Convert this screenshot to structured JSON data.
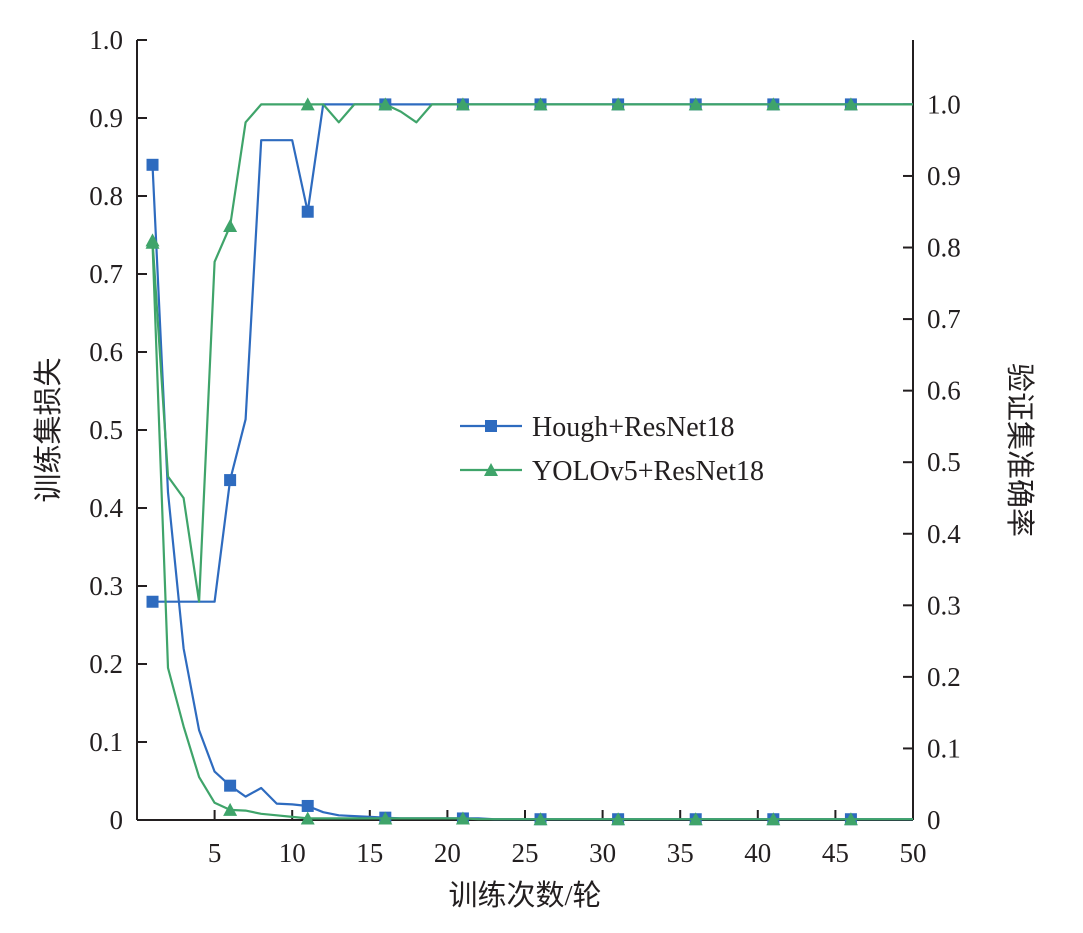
{
  "chart_data": {
    "type": "line",
    "xlabel": "训练次数/轮",
    "ylabel_left": "训练集损失",
    "ylabel_right": "验证集准确率",
    "xlim": [
      0,
      50
    ],
    "ylim_left": [
      0,
      1.0
    ],
    "ylim_right": [
      0,
      1.09
    ],
    "x_ticks": [
      5,
      10,
      15,
      20,
      25,
      30,
      35,
      40,
      45,
      50
    ],
    "x_tick_labels": [
      "5",
      "10",
      "15",
      "20",
      "25",
      "30",
      "35",
      "40",
      "45",
      "50"
    ],
    "y_left_ticks": [
      0,
      0.1,
      0.2,
      0.3,
      0.4,
      0.5,
      0.6,
      0.7,
      0.8,
      0.9,
      1.0
    ],
    "y_left_tick_labels": [
      "0",
      "0.1",
      "0.2",
      "0.3",
      "0.4",
      "0.5",
      "0.6",
      "0.7",
      "0.8",
      "0.9",
      "1.0"
    ],
    "y_right_ticks": [
      0,
      0.1,
      0.2,
      0.3,
      0.4,
      0.5,
      0.6,
      0.7,
      0.8,
      0.9,
      1.0
    ],
    "y_right_tick_labels": [
      "0",
      "0.1",
      "0.2",
      "0.3",
      "0.4",
      "0.5",
      "0.6",
      "0.7",
      "0.8",
      "0.9",
      "1.0"
    ],
    "grid": false,
    "legend_position": "center-right",
    "series": [
      {
        "name": "Hough+ResNet18",
        "color": "#2e6bbf",
        "marker": "square",
        "loss": {
          "x": [
            1,
            2,
            3,
            4,
            5,
            6,
            7,
            8,
            9,
            10,
            11,
            12,
            13,
            14,
            15,
            16,
            17,
            18,
            19,
            20,
            21,
            22,
            23,
            24,
            25,
            26,
            31,
            36,
            41,
            46,
            50
          ],
          "y": [
            0.84,
            0.42,
            0.22,
            0.115,
            0.062,
            0.044,
            0.03,
            0.041,
            0.021,
            0.02,
            0.018,
            0.01,
            0.006,
            0.005,
            0.004,
            0.003,
            0.002,
            0.002,
            0.002,
            0.002,
            0.002,
            0.002,
            0.001,
            0.001,
            0.001,
            0.001,
            0.001,
            0.001,
            0.001,
            0.001,
            0.001
          ]
        },
        "accuracy": {
          "x": [
            1,
            2,
            3,
            4,
            5,
            6,
            7,
            8,
            9,
            10,
            11,
            12,
            13,
            14,
            15,
            16,
            21,
            26,
            31,
            36,
            41,
            46,
            50
          ],
          "y": [
            0.305,
            0.305,
            0.305,
            0.305,
            0.305,
            0.475,
            0.56,
            0.95,
            0.95,
            0.95,
            0.85,
            1.0,
            1.0,
            1.0,
            1.0,
            1.0,
            1.0,
            1.0,
            1.0,
            1.0,
            1.0,
            1.0,
            1.0
          ]
        },
        "marker_x": [
          1,
          6,
          11,
          16,
          21,
          26,
          31,
          36,
          41,
          46
        ]
      },
      {
        "name": "YOLOv5+ResNet18",
        "color": "#3fa46a",
        "marker": "triangle",
        "loss": {
          "x": [
            1,
            2,
            3,
            4,
            5,
            6,
            7,
            8,
            9,
            10,
            11,
            12,
            13,
            14,
            15,
            16,
            17,
            18,
            19,
            20,
            21,
            22,
            23,
            24,
            25,
            26,
            31,
            36,
            41,
            46,
            50
          ],
          "y": [
            0.74,
            0.195,
            0.12,
            0.055,
            0.022,
            0.013,
            0.012,
            0.008,
            0.006,
            0.004,
            0.002,
            0.002,
            0.002,
            0.002,
            0.002,
            0.002,
            0.002,
            0.002,
            0.002,
            0.002,
            0.002,
            0.001,
            0.001,
            0.001,
            0.001,
            0.001,
            0.001,
            0.001,
            0.001,
            0.001,
            0.001
          ]
        },
        "accuracy": {
          "x": [
            1,
            2,
            3,
            4,
            5,
            6,
            7,
            8,
            9,
            10,
            11,
            12,
            13,
            14,
            15,
            16,
            17,
            18,
            19,
            20,
            21,
            26,
            31,
            36,
            41,
            46,
            50
          ],
          "y": [
            0.81,
            0.48,
            0.45,
            0.305,
            0.78,
            0.83,
            0.975,
            1.0,
            1.0,
            1.0,
            1.0,
            1.0,
            0.975,
            1.0,
            1.0,
            1.0,
            0.99,
            0.975,
            1.0,
            1.0,
            1.0,
            1.0,
            1.0,
            1.0,
            1.0,
            1.0,
            1.0
          ]
        },
        "marker_x": [
          1,
          6,
          11,
          16,
          21,
          26,
          31,
          36,
          41,
          46
        ]
      }
    ]
  }
}
